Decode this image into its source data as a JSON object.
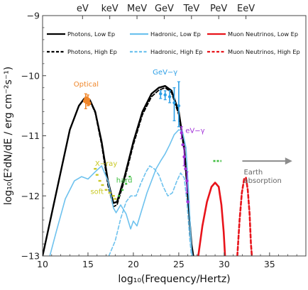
{
  "chart_data": {
    "type": "line",
    "xlabel": "log₁₀(Frequency/Hertz)",
    "ylabel": "log₁₀(E²dN/dE / erg cm⁻²s⁻¹)",
    "xlim": [
      10,
      39
    ],
    "ylim": [
      -13,
      -9
    ],
    "x_ticks": [
      10,
      15,
      20,
      25,
      30,
      35
    ],
    "y_ticks": [
      -13,
      -12,
      -11,
      -10,
      -9
    ],
    "top_axis": [
      {
        "label": "eV",
        "x": 14.4
      },
      {
        "label": "keV",
        "x": 17.4
      },
      {
        "label": "MeV",
        "x": 20.4
      },
      {
        "label": "GeV",
        "x": 23.4
      },
      {
        "label": "TeV",
        "x": 26.4
      },
      {
        "label": "PeV",
        "x": 29.4
      },
      {
        "label": "EeV",
        "x": 32.4
      }
    ],
    "colors": {
      "photons": "#000000",
      "hadronic": "#6ec2ee",
      "neutrinos": "#e8141b",
      "optical": "#f0862a",
      "xray": "#c9c926",
      "gev": "#2c9fe6",
      "evgamma": "#a030d8",
      "green": "#3ebd3e",
      "arrow": "#8c8c8c"
    },
    "legend": [
      {
        "label": "Photons, Low Ep",
        "color": "#000000",
        "dash": false
      },
      {
        "label": "Hadronic, Low Ep",
        "color": "#6ec2ee",
        "dash": false
      },
      {
        "label": "Muon Neutrinos, Low Ep",
        "color": "#e8141b",
        "dash": false
      },
      {
        "label": "Photons, High Ep",
        "color": "#000000",
        "dash": true
      },
      {
        "label": "Hadronic, High Ep",
        "color": "#6ec2ee",
        "dash": true
      },
      {
        "label": "Muon Neutrinos, High Ep",
        "color": "#e8141b",
        "dash": true
      }
    ],
    "series": [
      {
        "name": "Photons, Low Ep",
        "color": "#000000",
        "dash": false,
        "width": 2.4,
        "points": [
          [
            10,
            -13.0
          ],
          [
            11,
            -12.3
          ],
          [
            12,
            -11.6
          ],
          [
            13,
            -10.9
          ],
          [
            14,
            -10.5
          ],
          [
            14.6,
            -10.38
          ],
          [
            15.2,
            -10.4
          ],
          [
            15.8,
            -10.6
          ],
          [
            16.5,
            -11.1
          ],
          [
            17.2,
            -11.75
          ],
          [
            17.8,
            -12.12
          ],
          [
            18.2,
            -12.1
          ],
          [
            19,
            -11.7
          ],
          [
            20,
            -11.1
          ],
          [
            21,
            -10.6
          ],
          [
            22,
            -10.3
          ],
          [
            22.8,
            -10.2
          ],
          [
            23.5,
            -10.17
          ],
          [
            24.2,
            -10.25
          ],
          [
            25,
            -10.6
          ],
          [
            25.6,
            -11.2
          ],
          [
            26,
            -12.0
          ],
          [
            26.4,
            -12.8
          ],
          [
            26.6,
            -13.0
          ]
        ]
      },
      {
        "name": "Photons, High Ep",
        "color": "#000000",
        "dash": true,
        "width": 1.8,
        "points": [
          [
            10,
            -13.0
          ],
          [
            11,
            -12.3
          ],
          [
            12,
            -11.6
          ],
          [
            13,
            -10.9
          ],
          [
            14,
            -10.5
          ],
          [
            14.6,
            -10.38
          ],
          [
            15.2,
            -10.41
          ],
          [
            15.8,
            -10.62
          ],
          [
            16.5,
            -11.15
          ],
          [
            17.2,
            -11.82
          ],
          [
            17.8,
            -12.18
          ],
          [
            18.2,
            -12.15
          ],
          [
            19,
            -11.75
          ],
          [
            20,
            -11.15
          ],
          [
            21,
            -10.65
          ],
          [
            22,
            -10.35
          ],
          [
            22.8,
            -10.24
          ],
          [
            23.5,
            -10.2
          ],
          [
            24.2,
            -10.28
          ],
          [
            25,
            -10.65
          ],
          [
            25.6,
            -11.25
          ],
          [
            26,
            -12.05
          ],
          [
            26.4,
            -12.85
          ],
          [
            26.6,
            -13.0
          ]
        ]
      },
      {
        "name": "Hadronic, Low Ep",
        "color": "#6ec2ee",
        "dash": false,
        "width": 1.6,
        "points": [
          [
            10.8,
            -13.0
          ],
          [
            11.5,
            -12.6
          ],
          [
            12.5,
            -12.05
          ],
          [
            13.5,
            -11.75
          ],
          [
            14.3,
            -11.68
          ],
          [
            15,
            -11.72
          ],
          [
            15.8,
            -11.6
          ],
          [
            16.5,
            -11.5
          ],
          [
            17.2,
            -11.75
          ],
          [
            17.8,
            -12.2
          ],
          [
            18.1,
            -12.28
          ],
          [
            18.6,
            -12.15
          ],
          [
            19.2,
            -12.3
          ],
          [
            19.7,
            -12.55
          ],
          [
            20,
            -12.42
          ],
          [
            20.4,
            -12.5
          ],
          [
            20.9,
            -12.25
          ],
          [
            21.5,
            -11.95
          ],
          [
            22,
            -11.75
          ],
          [
            22.5,
            -11.55
          ],
          [
            23,
            -11.42
          ],
          [
            23.5,
            -11.3
          ],
          [
            24,
            -11.15
          ],
          [
            24.5,
            -10.98
          ],
          [
            25,
            -10.9
          ],
          [
            25.4,
            -10.92
          ],
          [
            25.8,
            -11.2
          ],
          [
            26.1,
            -12.0
          ],
          [
            26.4,
            -12.9
          ],
          [
            26.5,
            -13.0
          ]
        ]
      },
      {
        "name": "Hadronic, High Ep",
        "color": "#6ec2ee",
        "dash": true,
        "width": 1.6,
        "points": [
          [
            17.3,
            -13.0
          ],
          [
            18,
            -12.75
          ],
          [
            18.6,
            -12.38
          ],
          [
            19.2,
            -12.1
          ],
          [
            19.7,
            -12.0
          ],
          [
            20.3,
            -12.0
          ],
          [
            20.8,
            -11.8
          ],
          [
            21.4,
            -11.6
          ],
          [
            21.8,
            -11.5
          ],
          [
            22.3,
            -11.55
          ],
          [
            22.8,
            -11.65
          ],
          [
            23.3,
            -11.85
          ],
          [
            23.8,
            -12.0
          ],
          [
            24.3,
            -11.95
          ],
          [
            24.8,
            -11.75
          ],
          [
            25.2,
            -11.62
          ],
          [
            25.6,
            -11.7
          ],
          [
            25.9,
            -12.1
          ],
          [
            26.2,
            -12.7
          ],
          [
            26.4,
            -13.0
          ]
        ]
      },
      {
        "name": "Muon Neutrinos, Low Ep",
        "color": "#e8141b",
        "dash": false,
        "width": 2.6,
        "points": [
          [
            27.15,
            -13.0
          ],
          [
            27.6,
            -12.5
          ],
          [
            28.1,
            -12.1
          ],
          [
            28.6,
            -11.85
          ],
          [
            29,
            -11.78
          ],
          [
            29.4,
            -11.85
          ],
          [
            29.7,
            -12.15
          ],
          [
            29.95,
            -12.6
          ],
          [
            30.1,
            -13.0
          ]
        ]
      },
      {
        "name": "Muon Neutrinos, High Ep",
        "color": "#e8141b",
        "dash": true,
        "width": 2.6,
        "points": [
          [
            31.45,
            -13.0
          ],
          [
            31.7,
            -12.4
          ],
          [
            31.95,
            -11.95
          ],
          [
            32.2,
            -11.72
          ],
          [
            32.4,
            -11.7
          ],
          [
            32.6,
            -11.9
          ],
          [
            32.8,
            -12.3
          ],
          [
            32.95,
            -12.8
          ],
          [
            33.05,
            -13.0
          ]
        ]
      }
    ],
    "data_points": {
      "optical": [
        [
          14.7,
          -10.42
        ],
        [
          14.8,
          -10.38
        ],
        [
          14.9,
          -10.44
        ],
        [
          15.0,
          -10.4
        ],
        [
          15.1,
          -10.46
        ]
      ],
      "optical_errors": [
        [
          14.75,
          -10.3,
          -10.55
        ],
        [
          15.0,
          -10.32,
          -10.5
        ]
      ],
      "xray": [
        [
          15.8,
          -11.55
        ],
        [
          16.0,
          -11.65
        ],
        [
          16.3,
          -11.75
        ],
        [
          16.6,
          -11.82
        ],
        [
          17.0,
          -11.9
        ],
        [
          17.4,
          -11.95
        ],
        [
          17.8,
          -12.0
        ],
        [
          18.0,
          -12.05
        ]
      ],
      "green": [
        [
          18.4,
          -12.0
        ],
        [
          18.8,
          -11.9
        ],
        [
          19.2,
          -11.8
        ],
        [
          19.6,
          -11.68
        ]
      ],
      "gev": [
        [
          23.0,
          -10.3
        ],
        [
          23.5,
          -10.32
        ],
        [
          24.0,
          -10.35
        ],
        [
          24.5,
          -10.45
        ],
        [
          25.0,
          -10.5
        ]
      ],
      "gev_errors": [
        [
          23.0,
          -10.25,
          -10.38
        ],
        [
          23.5,
          -10.25,
          -10.4
        ],
        [
          24.0,
          -10.25,
          -10.45
        ],
        [
          24.5,
          -10.2,
          -10.75
        ],
        [
          25.0,
          -10.1,
          -10.85
        ]
      ],
      "evgamma": [
        [
          25.3,
          -10.95
        ],
        [
          25.45,
          -11.15
        ],
        [
          25.6,
          -11.35
        ],
        [
          25.75,
          -11.55
        ],
        [
          25.9,
          -11.75
        ],
        [
          26.0,
          -12.1
        ]
      ],
      "evgamma_errors": [
        [
          25.3,
          -10.85,
          -11.05
        ],
        [
          25.6,
          -11.2,
          -11.5
        ],
        [
          25.9,
          -11.6,
          -11.95
        ]
      ],
      "green_dashes": [
        [
          28.8,
          -11.42
        ],
        [
          29.7,
          -11.42
        ]
      ]
    },
    "annotations": [
      {
        "text": "Optical",
        "color": "#f0862a",
        "x": 14.8,
        "y": -10.18
      },
      {
        "text": "GeV−γ",
        "color": "#2c9fe6",
        "x": 23.5,
        "y": -9.98
      },
      {
        "text": "eV−γ",
        "color": "#a030d8",
        "x": 26.8,
        "y": -10.95
      },
      {
        "text": "X−ray",
        "color": "#c9c926",
        "x": 17.0,
        "y": -11.5
      },
      {
        "text": "soft",
        "color": "#c9c926",
        "x": 16.0,
        "y": -11.97
      },
      {
        "text": "hard",
        "color": "#3ebd3e",
        "x": 19.0,
        "y": -11.78
      }
    ],
    "arrow": {
      "from_x": 32.0,
      "to_x": 37.5,
      "y": -11.42,
      "label_line1": "Earth",
      "label_line2": "absorption"
    }
  }
}
